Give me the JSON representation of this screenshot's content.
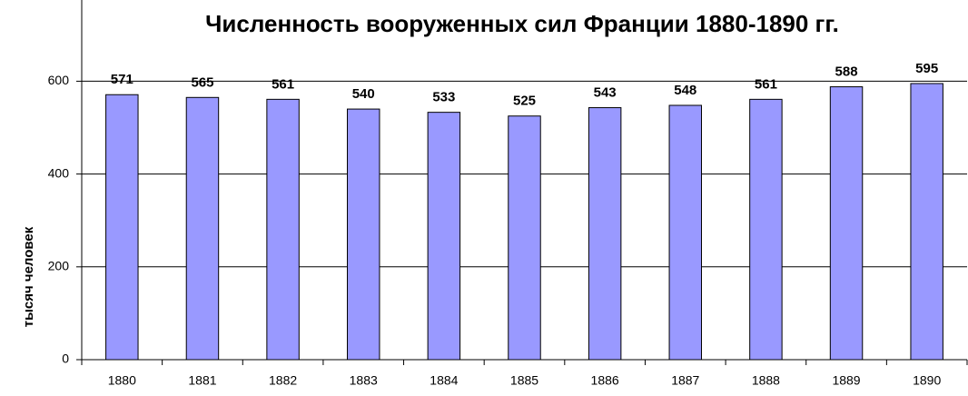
{
  "chart_data": {
    "type": "bar",
    "title": "Численность вооруженных сил Франции 1880-1890 гг.",
    "y_label": "тысяч человек",
    "categories": [
      "1880",
      "1881",
      "1882",
      "1883",
      "1884",
      "1885",
      "1886",
      "1887",
      "1888",
      "1889",
      "1890"
    ],
    "values": [
      571,
      565,
      561,
      540,
      533,
      525,
      543,
      548,
      561,
      588,
      595
    ],
    "color": "#9999ff",
    "ylim": [
      0,
      775
    ],
    "yticks": [
      0,
      200,
      400,
      600
    ],
    "grid": true
  }
}
